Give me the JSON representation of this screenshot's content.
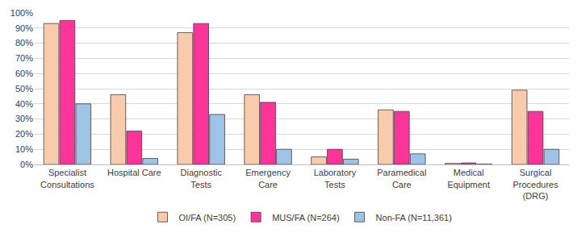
{
  "chart_data": {
    "type": "bar",
    "categories": [
      "Specialist\nConsultations",
      "Hospital Care",
      "Diagnostic\nTests",
      "Emergency\nCare",
      "Laboratory\nTests",
      "Paramedical\nCare",
      "Medical\nEquipment",
      "Surgical\nProcedures\n(DRG)"
    ],
    "series": [
      {
        "name": "OI/FA (N=305)",
        "color": "#f8cbad",
        "values": [
          93,
          46,
          87,
          46,
          5,
          36,
          0.7,
          49
        ]
      },
      {
        "name": "MUS/FA (N=264)",
        "color": "#ff3399",
        "values": [
          95,
          22,
          93,
          41,
          10,
          35,
          1,
          35
        ]
      },
      {
        "name": "Non-FA (N=11,361)",
        "color": "#9dc3e6",
        "values": [
          40,
          4,
          33,
          10,
          3.5,
          7,
          0.2,
          10
        ]
      }
    ],
    "ylim": [
      0,
      100
    ],
    "yticks": [
      {
        "value": 0,
        "label": "0%"
      },
      {
        "value": 10,
        "label": "10%"
      },
      {
        "value": 20,
        "label": "20%"
      },
      {
        "value": 30,
        "label": "30%"
      },
      {
        "value": 40,
        "label": "40%"
      },
      {
        "value": 50,
        "label": "50%"
      },
      {
        "value": 60,
        "label": "60%"
      },
      {
        "value": 70,
        "label": "70%"
      },
      {
        "value": 80,
        "label": "80%"
      },
      {
        "value": 90,
        "label": "90%"
      },
      {
        "value": 100,
        "label": "100%"
      }
    ],
    "grid": true,
    "legend": "bottom"
  }
}
